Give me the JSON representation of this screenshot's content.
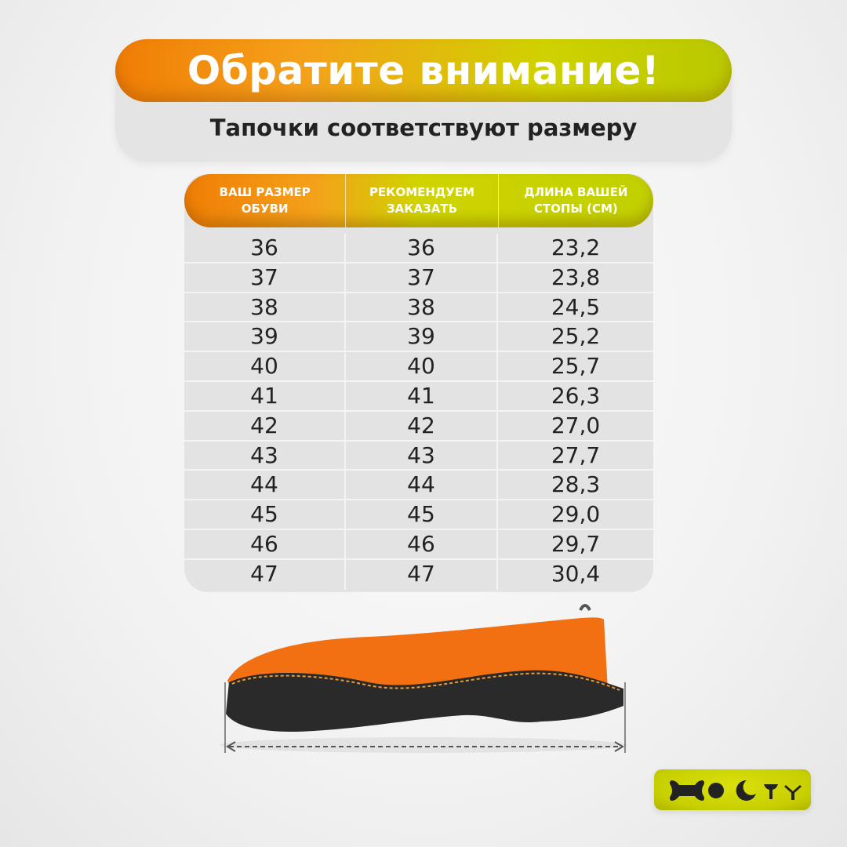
{
  "header": {
    "title": "Обратите внимание!",
    "subtitle": "Тапочки соответствуют размеру"
  },
  "table": {
    "columns": [
      "ВАШ РАЗМЕР\nОБУВИ",
      "РЕКОМЕНДУЕМ\nЗАКАЗАТЬ",
      "ДЛИНА ВАШЕЙ\nСТОПЫ (СМ)"
    ],
    "rows": [
      [
        "36",
        "36",
        "23,2"
      ],
      [
        "37",
        "37",
        "23,8"
      ],
      [
        "38",
        "38",
        "24,5"
      ],
      [
        "39",
        "39",
        "25,2"
      ],
      [
        "40",
        "40",
        "25,7"
      ],
      [
        "41",
        "41",
        "26,3"
      ],
      [
        "42",
        "42",
        "27,0"
      ],
      [
        "43",
        "43",
        "27,7"
      ],
      [
        "44",
        "44",
        "28,3"
      ],
      [
        "45",
        "45",
        "29,0"
      ],
      [
        "46",
        "46",
        "29,7"
      ],
      [
        "47",
        "47",
        "30,4"
      ]
    ]
  },
  "brand": {
    "logo": "HOCTY",
    "logo_color": "#c8cf00"
  },
  "colors": {
    "orange": "#f07d05",
    "lime": "#c1d000",
    "text": "#222222"
  }
}
